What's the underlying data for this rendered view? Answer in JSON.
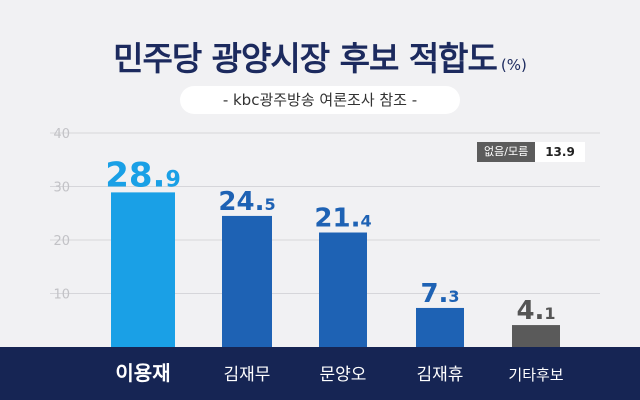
{
  "title": "민주당 광양시장 후보 적합도",
  "unit": "(%)",
  "subtitle": "- kbc광주방송 여론조사 참조 -",
  "legend": {
    "label": "없음/모름",
    "value": "13.9"
  },
  "colors": {
    "highlight": "#1aa0e6",
    "bar": "#1e62b4",
    "other": "#5a5a5a",
    "footer": "#162554",
    "title": "#1c2a5e"
  },
  "chart_data": {
    "type": "bar",
    "title": "민주당 광양시장 후보 적합도",
    "unit": "(%)",
    "categories": [
      "이용재",
      "김재무",
      "문양오",
      "김재휴",
      "기타후보"
    ],
    "values": [
      28.9,
      24.5,
      21.4,
      7.3,
      4.1
    ],
    "yticks": [
      10,
      20,
      30,
      40
    ],
    "ylim": [
      0,
      40
    ],
    "grid": true
  }
}
